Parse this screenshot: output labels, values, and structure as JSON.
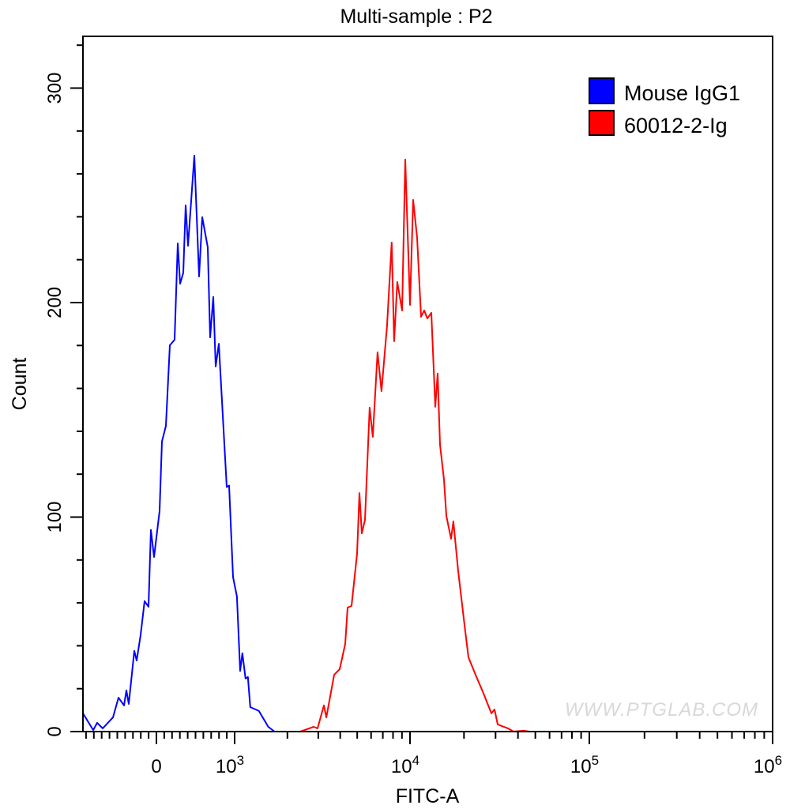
{
  "chart_data": {
    "type": "line",
    "title": "Multi-sample : P2",
    "xlabel": "FITC-A",
    "ylabel": "Count",
    "x_scale": "biexponential",
    "xlim": [
      -940,
      1000000
    ],
    "ylim": [
      0,
      325
    ],
    "x_ticks": [
      {
        "value": 0,
        "label": "0",
        "sup": ""
      },
      {
        "value": 1000,
        "label": "10",
        "sup": "3"
      },
      {
        "value": 10000,
        "label": "10",
        "sup": "4"
      },
      {
        "value": 100000,
        "label": "10",
        "sup": "5"
      },
      {
        "value": 1000000,
        "label": "10",
        "sup": "6"
      }
    ],
    "y_ticks": [
      {
        "value": 0,
        "label": "0"
      },
      {
        "value": 100,
        "label": "100"
      },
      {
        "value": 200,
        "label": "200"
      },
      {
        "value": 300,
        "label": "300"
      }
    ],
    "grid": false,
    "legend_position": "top-right",
    "watermark": "WWW.PTGLAB.COM",
    "series": [
      {
        "name": "Mouse IgG1",
        "color": "#0000ff",
        "x": [
          -939,
          -808,
          -758,
          -687,
          -556,
          -485,
          -414,
          -384,
          -354,
          -283,
          -253,
          -202,
          -152,
          -101,
          -71,
          -30,
          40,
          71,
          121,
          172,
          232,
          273,
          303,
          343,
          374,
          404,
          485,
          545,
          586,
          657,
          687,
          727,
          758,
          798,
          899,
          929,
          980,
          1031,
          1075,
          1107,
          1154,
          1190,
          1228,
          1375,
          1555,
          1689
        ],
        "y": [
          8.5,
          0.7,
          4.1,
          1.5,
          6.6,
          15.8,
          12.2,
          19.2,
          12.9,
          37.6,
          33.1,
          45.0,
          60.8,
          58.2,
          94.0,
          81.4,
          102.8,
          135.2,
          142.5,
          180.1,
          182.7,
          227.6,
          208.8,
          213.9,
          245.3,
          226.5,
          268.5,
          212.2,
          239.8,
          225.8,
          183.8,
          202.6,
          170.2,
          180.8,
          114.0,
          114.7,
          72.0,
          63.0,
          28.3,
          36.5,
          24.7,
          25.4,
          11.4,
          9.6,
          2.2,
          0
        ]
      },
      {
        "name": "60012-2-Ig",
        "color": "#ff0000",
        "x": [
          2365,
          2820,
          2972,
          3228,
          3333,
          3696,
          3973,
          4272,
          4406,
          4642,
          4989,
          5148,
          5311,
          5534,
          5888,
          6138,
          6531,
          6880,
          7392,
          7865,
          8120,
          8466,
          9014,
          9397,
          10000,
          10414,
          10955,
          11527,
          12000,
          12500,
          13150,
          13830,
          14260,
          14700,
          15460,
          15940,
          16940,
          17460,
          18570,
          20130,
          21180,
          23210,
          25700,
          28440,
          29600,
          30820,
          35170,
          37770,
          43080,
          46230
        ],
        "y": [
          0,
          2.2,
          1.5,
          12.2,
          6.6,
          26.5,
          29.1,
          40.9,
          57.8,
          58.6,
          82.9,
          111.2,
          92.4,
          98.7,
          151.0,
          137.4,
          176.8,
          158.7,
          189.0,
          228.0,
          182.0,
          209.6,
          196.3,
          266.7,
          198.9,
          247.9,
          230.2,
          193.4,
          196.3,
          192.6,
          195.2,
          151.4,
          166.9,
          133.7,
          117.5,
          100.6,
          89.9,
          98.0,
          74.8,
          49.7,
          34.6,
          26.5,
          17.7,
          8.5,
          10.3,
          3.3,
          1.5,
          0,
          0.4,
          0
        ]
      }
    ]
  }
}
